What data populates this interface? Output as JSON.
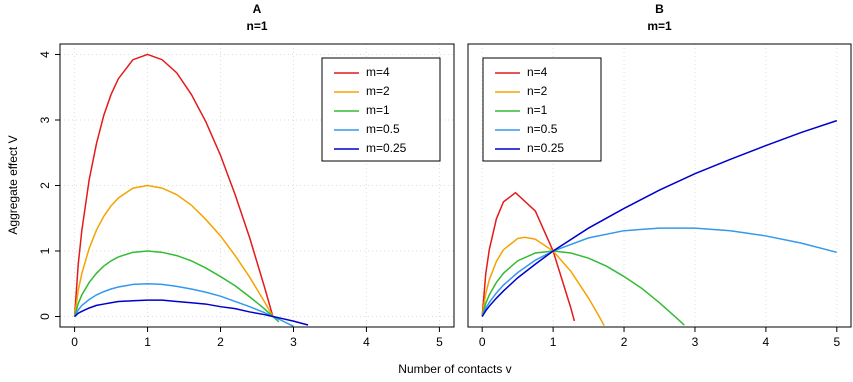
{
  "chart_data": [
    {
      "type": "line",
      "title": "A",
      "subtitle": "n=1",
      "xlabel": "Number of contacts  v",
      "ylabel": "Aggregate effect  V",
      "xlim": [
        -0.2,
        5.2
      ],
      "ylim": [
        -0.16,
        4.16
      ],
      "xticks": [
        0,
        1,
        2,
        3,
        4,
        5
      ],
      "yticks": [
        0,
        1,
        2,
        3,
        4
      ],
      "grid": true,
      "legend": "topright",
      "x": [
        0,
        0.05,
        0.1,
        0.2,
        0.3,
        0.4,
        0.5,
        0.6,
        0.8,
        1,
        1.2,
        1.4,
        1.6,
        1.8,
        2,
        2.2,
        2.4,
        2.6,
        2.718,
        2.8,
        3,
        3.2
      ],
      "series": [
        {
          "name": "m=4",
          "color": "#e41a1c",
          "values": [
            0,
            0.8,
            1.32,
            2.09,
            2.64,
            3.07,
            3.39,
            3.63,
            3.92,
            4,
            3.92,
            3.72,
            3.39,
            2.97,
            2.46,
            1.86,
            1.2,
            0.46,
            0,
            null,
            null,
            null
          ]
        },
        {
          "name": "m=2",
          "color": "#f5a300",
          "values": [
            0,
            0.4,
            0.66,
            1.04,
            1.32,
            1.53,
            1.69,
            1.81,
            1.96,
            2,
            1.96,
            1.86,
            1.7,
            1.48,
            1.23,
            0.93,
            0.6,
            0.23,
            0,
            null,
            null,
            null
          ]
        },
        {
          "name": "m=1",
          "color": "#33bb33",
          "values": [
            0,
            0.2,
            0.33,
            0.52,
            0.66,
            0.77,
            0.85,
            0.91,
            0.98,
            1,
            0.98,
            0.93,
            0.85,
            0.74,
            0.61,
            0.47,
            0.3,
            0.12,
            0,
            -0.08,
            null,
            null
          ]
        },
        {
          "name": "m=0.5",
          "color": "#3399ee",
          "values": [
            0,
            0.1,
            0.17,
            0.26,
            0.33,
            0.38,
            0.42,
            0.45,
            0.49,
            0.5,
            0.49,
            0.46,
            0.42,
            0.37,
            0.31,
            0.23,
            0.15,
            0.06,
            0,
            -0.04,
            -0.15,
            null
          ]
        },
        {
          "name": "m=0.25",
          "color": "#0000cc",
          "values": [
            0,
            0.05,
            0.08,
            0.13,
            0.17,
            0.19,
            0.21,
            0.23,
            0.24,
            0.25,
            0.25,
            0.23,
            0.21,
            0.19,
            0.15,
            0.12,
            0.07,
            0.03,
            0,
            -0.02,
            -0.07,
            -0.13
          ]
        }
      ]
    },
    {
      "type": "line",
      "title": "B",
      "subtitle": "m=1",
      "xlim": [
        -0.2,
        5.2
      ],
      "ylim": [
        -0.16,
        4.16
      ],
      "xticks": [
        0,
        1,
        2,
        3,
        4,
        5
      ],
      "grid": true,
      "legend": "topleft",
      "series": [
        {
          "name": "n=4",
          "color": "#e41a1c",
          "x": [
            0,
            0.05,
            0.1,
            0.2,
            0.3,
            0.47,
            0.75,
            1,
            1.25,
            1.3
          ],
          "values": [
            0,
            0.65,
            1.02,
            1.49,
            1.75,
            1.89,
            1.61,
            1,
            0.13,
            -0.07
          ]
        },
        {
          "name": "n=2",
          "color": "#f5a300",
          "x": [
            0,
            0.05,
            0.1,
            0.2,
            0.3,
            0.5,
            0.6,
            0.75,
            1,
            1.25,
            1.5,
            1.65,
            1.72
          ],
          "values": [
            0,
            0.35,
            0.56,
            0.84,
            1.02,
            1.19,
            1.21,
            1.18,
            1,
            0.69,
            0.28,
            0,
            -0.14
          ]
        },
        {
          "name": "n=1",
          "color": "#33bb33",
          "x": [
            0,
            0.05,
            0.1,
            0.2,
            0.3,
            0.5,
            0.75,
            1,
            1.25,
            1.5,
            1.75,
            2,
            2.25,
            2.5,
            2.718,
            2.85
          ],
          "values": [
            0,
            0.2,
            0.33,
            0.52,
            0.66,
            0.85,
            0.97,
            1,
            0.97,
            0.89,
            0.77,
            0.61,
            0.43,
            0.21,
            0,
            -0.13
          ]
        },
        {
          "name": "n=0.5",
          "color": "#3399ee",
          "x": [
            0,
            0.05,
            0.1,
            0.2,
            0.3,
            0.5,
            0.75,
            1,
            1.5,
            2,
            2.5,
            3,
            3.5,
            4,
            4.5,
            5
          ],
          "values": [
            0,
            0.125,
            0.215,
            0.36,
            0.48,
            0.67,
            0.86,
            1,
            1.2,
            1.31,
            1.35,
            1.35,
            1.31,
            1.23,
            1.12,
            0.98
          ]
        },
        {
          "name": "n=0.25",
          "color": "#0000cc",
          "x": [
            0,
            0.05,
            0.1,
            0.2,
            0.3,
            0.5,
            0.75,
            1,
            1.5,
            2,
            2.5,
            3,
            3.5,
            4,
            4.5,
            5
          ],
          "values": [
            0,
            0.087,
            0.158,
            0.28,
            0.39,
            0.59,
            0.8,
            1,
            1.35,
            1.65,
            1.93,
            2.18,
            2.4,
            2.61,
            2.81,
            2.99
          ]
        }
      ]
    }
  ]
}
